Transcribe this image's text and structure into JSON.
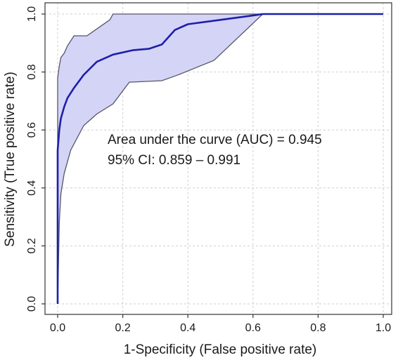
{
  "chart_data": {
    "type": "line",
    "title": "",
    "xlabel": "1-Specificity (False positive rate)",
    "ylabel": "Sensitivity (True positive rate)",
    "xlim": [
      0,
      1
    ],
    "ylim": [
      0,
      1
    ],
    "x_ticks": [
      "0.0",
      "0.2",
      "0.4",
      "0.6",
      "0.8",
      "1.0"
    ],
    "y_ticks": [
      "0.0",
      "0.2",
      "0.4",
      "0.6",
      "0.8",
      "1.0"
    ],
    "grid": true,
    "annotations": [
      "Area under the curve (AUC) = 0.945",
      "95% CI: 0.859 – 0.991"
    ],
    "colors": {
      "roc_line": "#1f1fa8",
      "ci_fill": "#d4d4f7",
      "ci_border": "#555566"
    },
    "series": [
      {
        "role": "roc",
        "x": [
          0,
          0,
          0.005,
          0.01,
          0.02,
          0.03,
          0.05,
          0.08,
          0.12,
          0.17,
          0.23,
          0.28,
          0.32,
          0.36,
          0.4,
          0.5,
          0.6,
          0.63,
          0.7,
          0.8,
          0.9,
          1.0
        ],
        "y": [
          0,
          0.53,
          0.6,
          0.64,
          0.68,
          0.71,
          0.745,
          0.79,
          0.835,
          0.86,
          0.875,
          0.88,
          0.895,
          0.945,
          0.965,
          0.98,
          0.995,
          1.0,
          1.0,
          1.0,
          1.0,
          1.0
        ]
      },
      {
        "role": "ci_upper",
        "x": [
          0,
          0,
          0.005,
          0.01,
          0.02,
          0.03,
          0.05,
          0.09,
          0.16,
          0.17,
          1.0
        ],
        "y": [
          0,
          0.78,
          0.82,
          0.85,
          0.865,
          0.89,
          0.925,
          0.925,
          0.98,
          1.0,
          1.0
        ]
      },
      {
        "role": "ci_lower",
        "x": [
          0,
          0.005,
          0.01,
          0.02,
          0.04,
          0.08,
          0.12,
          0.17,
          0.22,
          0.32,
          0.37,
          0.48,
          0.63,
          1.0
        ],
        "y": [
          0,
          0.28,
          0.38,
          0.45,
          0.53,
          0.615,
          0.655,
          0.69,
          0.765,
          0.77,
          0.79,
          0.84,
          1.0,
          1.0
        ]
      }
    ]
  }
}
